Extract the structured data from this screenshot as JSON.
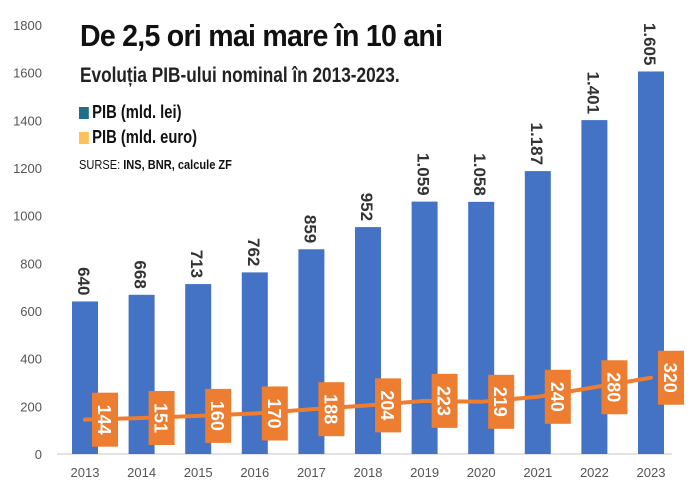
{
  "title": "De 2,5 ori mai mare în 10 ani",
  "subtitle": "Evoluția PIB-ului nominal în 2013-2023.",
  "sources": {
    "label": "SURSE:",
    "value": "INS, BNR, calcule ZF"
  },
  "chart_data": {
    "type": "bar",
    "categories": [
      "2013",
      "2014",
      "2015",
      "2016",
      "2017",
      "2018",
      "2019",
      "2020",
      "2021",
      "2022",
      "2023"
    ],
    "ylim": [
      0,
      1800
    ],
    "yticks": [
      0,
      200,
      400,
      600,
      800,
      1000,
      1200,
      1400,
      1600,
      1800
    ],
    "grid": false,
    "legend_placement": "top-left",
    "series": [
      {
        "name": "PIB (mld. lei)",
        "type": "bar",
        "color": "#4472C4",
        "legend_color": "#1F6E8C",
        "values": [
          640,
          668,
          713,
          762,
          859,
          952,
          1059,
          1058,
          1187,
          1401,
          1605
        ],
        "labels": [
          "640",
          "668",
          "713",
          "762",
          "859",
          "952",
          "1.059",
          "1.058",
          "1.187",
          "1.401",
          "1.605"
        ]
      },
      {
        "name": "PIB (mld. euro)",
        "type": "line",
        "color": "#ED7D31",
        "legend_color": "#FFC05A",
        "values": [
          144,
          151,
          160,
          170,
          188,
          204,
          223,
          219,
          240,
          280,
          320
        ],
        "labels": [
          "144",
          "151",
          "160",
          "170",
          "188",
          "204",
          "223",
          "219",
          "240",
          "280",
          "320"
        ]
      }
    ]
  }
}
